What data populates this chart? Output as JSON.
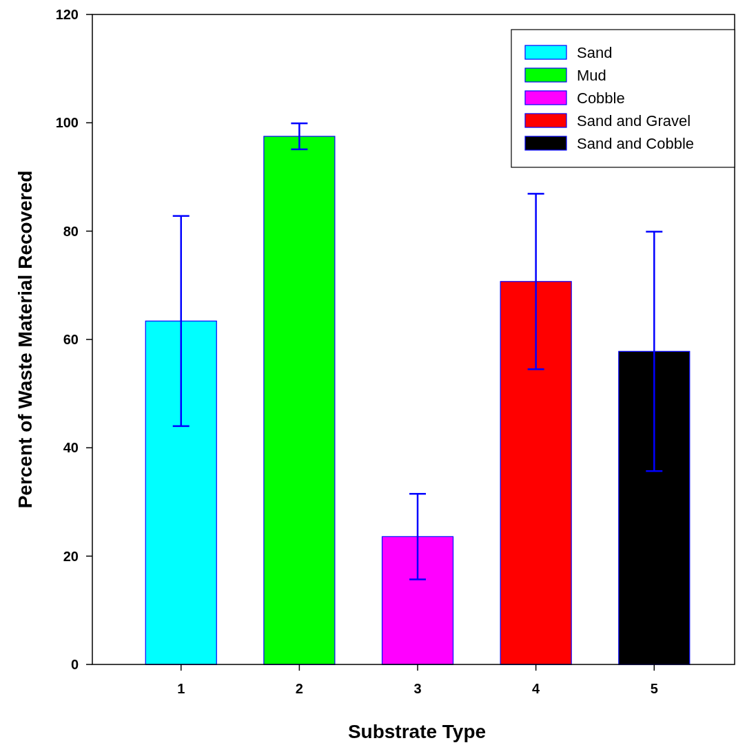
{
  "chart_data": {
    "type": "bar",
    "xlabel": "Substrate Type",
    "ylabel": "Percent of Waste Material Recovered",
    "categories": [
      "1",
      "2",
      "3",
      "4",
      "5"
    ],
    "series": [
      {
        "name": "Sand",
        "color": "#00ffff",
        "values": [
          63.4,
          null,
          null,
          null,
          null
        ],
        "errors": [
          19.4,
          null,
          null,
          null,
          null
        ]
      },
      {
        "name": "Mud",
        "color": "#00ff00",
        "values": [
          null,
          97.5,
          null,
          null,
          null
        ],
        "errors": [
          null,
          2.4,
          null,
          null,
          null
        ]
      },
      {
        "name": "Cobble",
        "color": "#ff00ff",
        "values": [
          null,
          null,
          23.6,
          null,
          null
        ],
        "errors": [
          null,
          null,
          7.9,
          null,
          null
        ]
      },
      {
        "name": "Sand and Gravel",
        "color": "#ff0000",
        "values": [
          null,
          null,
          null,
          70.7,
          null
        ],
        "errors": [
          null,
          null,
          null,
          16.2,
          null
        ]
      },
      {
        "name": "Sand and Cobble",
        "color": "#000000",
        "values": [
          null,
          null,
          null,
          null,
          57.8
        ],
        "errors": [
          null,
          null,
          null,
          null,
          22.1
        ]
      }
    ],
    "ylim": [
      0,
      120
    ],
    "yticks": [
      0,
      20,
      40,
      60,
      80,
      100,
      120
    ],
    "grid": false,
    "legend": "top right"
  }
}
